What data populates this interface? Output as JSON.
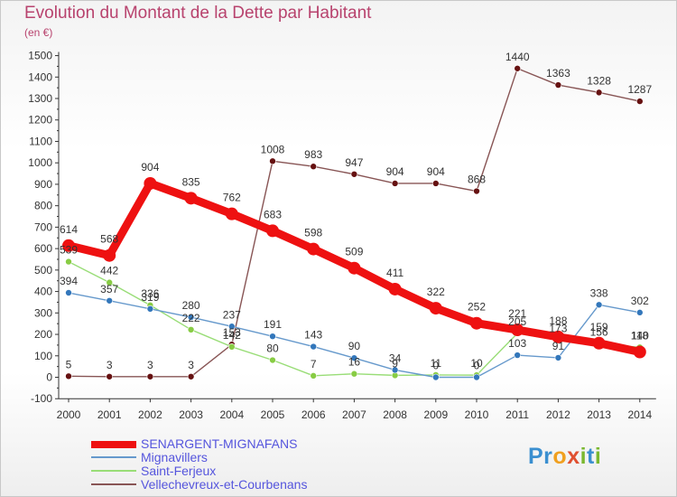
{
  "header": {
    "title": "Evolution du Montant de la Dette par Habitant",
    "subtitle": "(en €)"
  },
  "logo": {
    "text": "Proxiti"
  },
  "colors": {
    "title": "#b8436e",
    "legend_text": "#5555dd",
    "axis": "#333333"
  },
  "chart_data": {
    "type": "line",
    "title": "Evolution du Montant de la Dette par Habitant",
    "subtitle": "(en €)",
    "xlabel": "",
    "ylabel": "",
    "x": [
      "2000",
      "2001",
      "2002",
      "2003",
      "2004",
      "2005",
      "2006",
      "2007",
      "2008",
      "2009",
      "2010",
      "2011",
      "2012",
      "2013",
      "2014"
    ],
    "ylim": [
      -100,
      1500
    ],
    "yticks": [
      -100,
      0,
      100,
      200,
      300,
      400,
      500,
      600,
      700,
      800,
      900,
      1000,
      1100,
      1200,
      1300,
      1400,
      1500
    ],
    "grid": false,
    "legend_position": "bottom-left",
    "series": [
      {
        "name": "SENARGENT-MIGNAFANS",
        "color": "#ee1111",
        "marker": "#ee1111",
        "values": [
          614,
          568,
          904,
          835,
          762,
          683,
          598,
          509,
          411,
          322,
          252,
          221,
          188,
          159,
          118
        ],
        "labels": [
          "614",
          "568",
          "904",
          "835",
          "762",
          "683",
          "598",
          "509",
          "411",
          "322",
          "252",
          "221",
          "188",
          "159",
          "118"
        ]
      },
      {
        "name": "Mignavillers",
        "color": "#6699cc",
        "marker": "#3377bb",
        "values": [
          394,
          357,
          319,
          280,
          237,
          191,
          143,
          90,
          34,
          0,
          0,
          103,
          91,
          338,
          302
        ],
        "labels": [
          "394",
          "357",
          "319",
          "280",
          "237",
          "191",
          "143",
          "90",
          "34",
          "0",
          "0",
          "103",
          "91",
          "338",
          "302"
        ]
      },
      {
        "name": "Saint-Ferjeux",
        "color": "#99dd77",
        "marker": "#88cc44",
        "values": [
          539,
          442,
          336,
          222,
          142,
          80,
          7,
          16,
          9,
          11,
          10,
          205,
          173,
          156,
          140
        ],
        "labels": [
          "539",
          "442",
          "336",
          "222",
          "142",
          "80",
          "7",
          "16",
          "9",
          "11",
          "10",
          "205",
          "173",
          "156",
          "140"
        ]
      },
      {
        "name": "Vellechevreux-et-Courbenans",
        "color": "#885555",
        "marker": "#661111",
        "values": [
          5,
          3,
          3,
          3,
          153,
          1008,
          983,
          947,
          904,
          904,
          868,
          1440,
          1363,
          1328,
          1287
        ],
        "labels": [
          "5",
          "3",
          "3",
          "3",
          "153",
          "1008",
          "983",
          "947",
          "904",
          "904",
          "868",
          "1440",
          "1363",
          "1328",
          "1287"
        ]
      }
    ]
  }
}
